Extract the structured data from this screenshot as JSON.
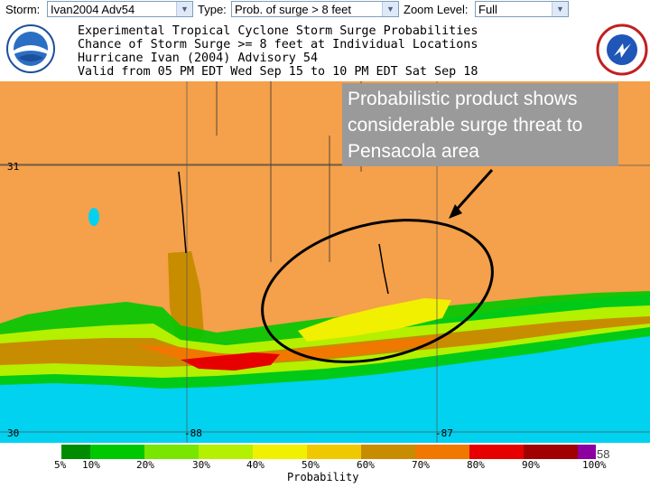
{
  "toolbar": {
    "storm_label": "Storm:",
    "storm_value": "Ivan2004 Adv54",
    "type_label": "Type:",
    "type_value": "Prob. of surge > 8 feet",
    "zoom_label": "Zoom Level:",
    "zoom_value": "Full"
  },
  "header": {
    "line1": "Experimental Tropical Cyclone Storm Surge Probabilities",
    "line2": "Chance of Storm Surge >= 8 feet at Individual Locations",
    "line3": "Hurricane Ivan (2004) Advisory 54",
    "line4": "Valid from 05 PM EDT Wed Sep 15 to 10 PM EDT Sat Sep 18"
  },
  "callout": {
    "text": "Probabilistic product shows considerable surge threat to Pensacola area"
  },
  "map": {
    "lat_31": "31",
    "lat_30": "30",
    "lon_88": "-88",
    "lon_87": "-87"
  },
  "legend": {
    "title": "Probability",
    "ticks": [
      "5%",
      "10%",
      "20%",
      "30%",
      "40%",
      "50%",
      "60%",
      "70%",
      "80%",
      "90%",
      "100%"
    ],
    "colors": [
      "#008c00",
      "#00c800",
      "#78e600",
      "#b4f000",
      "#f0f000",
      "#f0c800",
      "#c88c00",
      "#f07800",
      "#e60000",
      "#a00000",
      "#8c00a0"
    ]
  },
  "page_number": "58",
  "colors": {
    "land": "#f5a04a",
    "water": "#00d2f0",
    "callout_bg": "#9a9a9a"
  }
}
